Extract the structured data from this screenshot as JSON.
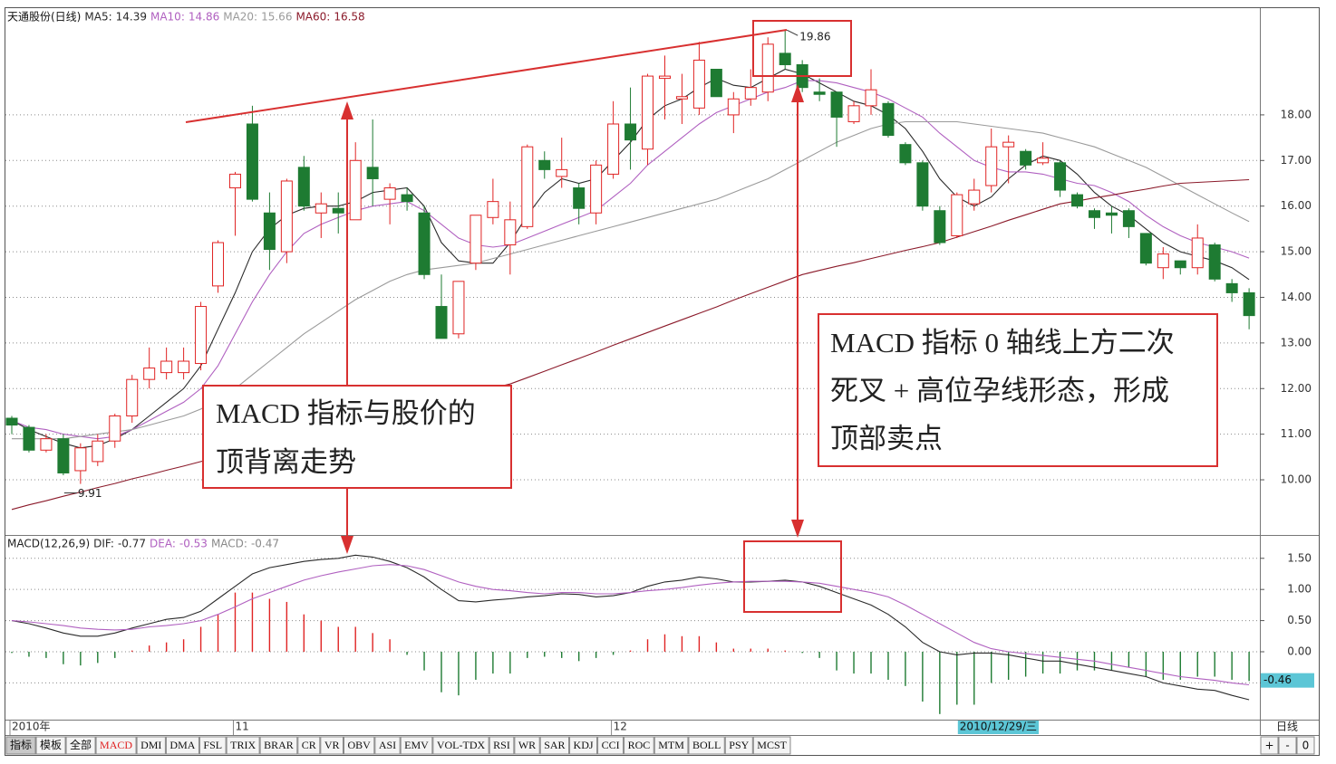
{
  "chart_data": [
    {
      "type": "candlestick",
      "title": "天通股份(日线)",
      "categories": [
        "2010年",
        null,
        null,
        null,
        null,
        null,
        null,
        null,
        null,
        null,
        null,
        null,
        null,
        "11",
        null,
        null,
        null,
        null,
        null,
        null,
        null,
        null,
        null,
        null,
        null,
        null,
        null,
        null,
        null,
        null,
        null,
        null,
        null,
        null,
        null,
        "12",
        null,
        null,
        null,
        null,
        null,
        null,
        null,
        null,
        null,
        null,
        null,
        null,
        null,
        null,
        null,
        null,
        null,
        null,
        null,
        "2010/12/29/三",
        null,
        null,
        null,
        null,
        null,
        null,
        null,
        null,
        null,
        null,
        null,
        null,
        null,
        null,
        null,
        null,
        null
      ],
      "cursor_index": 55,
      "period_label": "日线",
      "open": [
        11.35,
        11.15,
        10.65,
        10.9,
        10.2,
        10.4,
        10.85,
        11.4,
        12.2,
        12.35,
        12.35,
        12.55,
        14.25,
        16.4,
        17.8,
        15.85,
        15.0,
        16.85,
        15.85,
        15.95,
        15.7,
        16.85,
        16.15,
        16.25,
        15.85,
        13.8,
        13.2,
        14.75,
        15.75,
        15.15,
        15.55,
        17.0,
        16.65,
        16.4,
        15.85,
        16.7,
        17.8,
        17.25,
        18.8,
        18.35,
        18.15,
        19.0,
        18.0,
        18.35,
        18.5,
        19.35,
        19.1,
        18.5,
        18.5,
        17.85,
        18.2,
        18.25,
        17.35,
        16.95,
        15.9,
        15.35,
        16.05,
        16.45,
        17.3,
        17.2,
        16.95,
        16.95,
        16.25,
        15.9,
        15.85,
        15.9,
        15.4,
        14.65,
        14.8,
        14.65,
        15.15,
        14.3,
        14.1
      ],
      "high": [
        11.4,
        11.2,
        11.0,
        11.0,
        10.8,
        11.0,
        11.45,
        12.3,
        12.9,
        12.9,
        12.9,
        13.9,
        15.25,
        16.75,
        18.2,
        16.3,
        16.6,
        17.1,
        16.3,
        16.3,
        17.4,
        17.9,
        16.5,
        16.4,
        16.0,
        14.5,
        14.35,
        15.8,
        16.6,
        16.1,
        17.35,
        17.2,
        17.5,
        16.5,
        17.0,
        18.3,
        18.6,
        18.9,
        19.3,
        18.9,
        19.6,
        19.0,
        18.5,
        19.0,
        19.7,
        19.86,
        19.2,
        18.8,
        18.5,
        18.3,
        19.0,
        18.3,
        17.4,
        17.0,
        16.0,
        16.3,
        16.6,
        17.7,
        17.55,
        17.25,
        17.4,
        17.0,
        16.3,
        15.95,
        16.0,
        15.95,
        15.4,
        15.1,
        14.8,
        15.6,
        15.2,
        14.4,
        14.2
      ],
      "low": [
        11.0,
        10.6,
        10.6,
        10.1,
        9.91,
        10.3,
        10.7,
        11.25,
        12.0,
        12.2,
        12.2,
        12.4,
        14.1,
        15.35,
        16.1,
        14.6,
        14.75,
        15.9,
        15.3,
        15.4,
        15.7,
        16.0,
        15.6,
        15.9,
        14.4,
        13.1,
        13.1,
        14.6,
        15.6,
        14.5,
        15.5,
        16.6,
        16.4,
        15.6,
        15.6,
        16.6,
        16.8,
        16.9,
        17.9,
        17.8,
        18.0,
        18.4,
        17.6,
        18.2,
        18.3,
        19.0,
        18.5,
        18.3,
        17.3,
        17.8,
        18.0,
        17.5,
        16.9,
        15.9,
        15.15,
        15.3,
        15.9,
        16.3,
        16.5,
        16.8,
        16.9,
        16.2,
        15.95,
        15.5,
        15.4,
        15.3,
        14.7,
        14.4,
        14.5,
        14.5,
        14.35,
        13.9,
        13.3
      ],
      "close": [
        11.2,
        10.65,
        10.9,
        10.15,
        10.7,
        10.85,
        11.4,
        12.2,
        12.45,
        12.6,
        12.6,
        13.8,
        15.2,
        16.7,
        16.15,
        15.05,
        16.55,
        16.0,
        16.05,
        15.85,
        17.0,
        16.6,
        16.4,
        16.1,
        14.5,
        13.1,
        14.35,
        15.8,
        16.1,
        15.7,
        17.3,
        16.8,
        16.8,
        15.95,
        16.9,
        17.8,
        17.45,
        18.85,
        18.85,
        18.4,
        19.2,
        18.4,
        18.35,
        18.6,
        19.55,
        19.1,
        18.6,
        18.45,
        17.95,
        18.2,
        18.55,
        17.55,
        16.95,
        16.0,
        15.2,
        16.25,
        16.35,
        17.3,
        17.4,
        16.9,
        17.05,
        16.35,
        16.0,
        15.75,
        15.8,
        15.55,
        14.75,
        14.95,
        14.65,
        15.3,
        14.4,
        14.1,
        13.6
      ],
      "up_color": "#e02424",
      "down_color": "#1e7b32",
      "series": [
        {
          "name": "MA5:",
          "color": "#2a2a2a",
          "values": [
            11.3,
            11.1,
            10.95,
            10.8,
            10.7,
            10.75,
            10.9,
            11.1,
            11.4,
            11.7,
            12.0,
            12.5,
            13.3,
            14.1,
            15.0,
            15.5,
            15.8,
            15.95,
            16.0,
            16.0,
            16.1,
            16.3,
            16.35,
            16.4,
            16.0,
            15.2,
            14.8,
            14.75,
            14.75,
            15.2,
            15.8,
            16.3,
            16.6,
            16.5,
            16.6,
            17.0,
            17.4,
            17.9,
            18.2,
            18.35,
            18.6,
            18.8,
            18.65,
            18.6,
            18.8,
            19.0,
            18.9,
            18.7,
            18.5,
            18.3,
            18.2,
            18.0,
            17.7,
            17.2,
            16.6,
            16.2,
            16.0,
            16.2,
            16.6,
            16.9,
            17.1,
            17.0,
            16.7,
            16.3,
            16.0,
            15.8,
            15.5,
            15.2,
            15.0,
            14.9,
            14.8,
            14.65,
            14.39
          ]
        },
        {
          "name": "MA10:",
          "color": "#b060c0",
          "values": [
            11.3,
            11.15,
            11.1,
            11.0,
            10.95,
            10.9,
            10.95,
            11.1,
            11.3,
            11.5,
            11.7,
            12.0,
            12.5,
            13.2,
            13.9,
            14.5,
            15.0,
            15.4,
            15.6,
            15.75,
            15.9,
            16.0,
            16.05,
            16.1,
            15.9,
            15.6,
            15.3,
            15.15,
            15.1,
            15.15,
            15.3,
            15.45,
            15.6,
            15.75,
            15.9,
            16.2,
            16.5,
            16.9,
            17.2,
            17.5,
            17.8,
            18.05,
            18.2,
            18.35,
            18.5,
            18.6,
            18.75,
            18.75,
            18.7,
            18.6,
            18.5,
            18.35,
            18.15,
            17.95,
            17.6,
            17.3,
            17.0,
            16.85,
            16.75,
            16.75,
            16.7,
            16.6,
            16.5,
            16.45,
            16.3,
            16.1,
            15.8,
            15.55,
            15.35,
            15.2,
            15.1,
            15.0,
            14.86
          ]
        },
        {
          "name": "MA20:",
          "color": "#9a9a9a",
          "values": [
            10.9,
            10.9,
            10.9,
            10.9,
            10.95,
            11.0,
            11.05,
            11.1,
            11.2,
            11.3,
            11.4,
            11.55,
            11.75,
            12.0,
            12.3,
            12.6,
            12.9,
            13.2,
            13.45,
            13.7,
            13.95,
            14.15,
            14.35,
            14.5,
            14.6,
            14.65,
            14.7,
            14.75,
            14.85,
            14.95,
            15.05,
            15.15,
            15.25,
            15.35,
            15.45,
            15.55,
            15.65,
            15.75,
            15.85,
            15.95,
            16.05,
            16.15,
            16.3,
            16.45,
            16.6,
            16.8,
            17.0,
            17.2,
            17.4,
            17.55,
            17.7,
            17.8,
            17.85,
            17.85,
            17.85,
            17.85,
            17.8,
            17.75,
            17.7,
            17.65,
            17.6,
            17.5,
            17.4,
            17.3,
            17.15,
            17.0,
            16.85,
            16.65,
            16.45,
            16.25,
            16.05,
            15.85,
            15.66
          ]
        },
        {
          "name": "MA60:",
          "color": "#8b1a2a",
          "values": [
            9.35,
            9.45,
            9.54,
            9.64,
            9.73,
            9.83,
            9.92,
            10.02,
            10.11,
            10.21,
            10.3,
            10.4,
            10.49,
            10.59,
            10.68,
            10.78,
            10.87,
            10.97,
            11.06,
            11.16,
            11.25,
            11.35,
            11.44,
            11.54,
            11.63,
            11.73,
            11.82,
            11.92,
            12.01,
            12.1,
            12.24,
            12.38,
            12.52,
            12.66,
            12.8,
            12.95,
            13.09,
            13.23,
            13.37,
            13.51,
            13.65,
            13.79,
            13.94,
            14.08,
            14.22,
            14.36,
            14.5,
            14.59,
            14.68,
            14.76,
            14.85,
            14.94,
            15.03,
            15.11,
            15.2,
            15.32,
            15.44,
            15.56,
            15.69,
            15.81,
            15.93,
            16.05,
            16.11,
            16.18,
            16.24,
            16.31,
            16.37,
            16.44,
            16.5,
            16.52,
            16.54,
            16.56,
            16.58
          ]
        }
      ],
      "ylim": [
        8.81,
        20.32
      ],
      "yticks": [
        {
          "value": 10,
          "label": "10.00"
        },
        {
          "value": 11,
          "label": "11.00"
        },
        {
          "value": 12,
          "label": "12.00"
        },
        {
          "value": 13,
          "label": "13.00"
        },
        {
          "value": 14,
          "label": "14.00"
        },
        {
          "value": 15,
          "label": "15.00"
        },
        {
          "value": 16,
          "label": "16.00"
        },
        {
          "value": 17,
          "label": "17.00"
        },
        {
          "value": 18,
          "label": "18.00"
        }
      ],
      "grid": true,
      "extremes": {
        "high": 19.86,
        "low": 9.91
      },
      "annotations": [
        {
          "lines": [
            "MACD 指标与股价的",
            "顶背离走势"
          ]
        },
        {
          "lines": [
            "MACD 指标 0 轴线上方二次",
            "死叉 + 高位孕线形态，形成",
            "顶部卖点"
          ]
        }
      ]
    },
    {
      "type": "macd",
      "title": "MACD(12,26,9)",
      "series": [
        {
          "name": "DIF:",
          "color": "#2a2a2a",
          "values": [
            0.5,
            0.45,
            0.38,
            0.3,
            0.25,
            0.25,
            0.3,
            0.38,
            0.45,
            0.52,
            0.55,
            0.65,
            0.85,
            1.05,
            1.25,
            1.35,
            1.4,
            1.45,
            1.48,
            1.5,
            1.55,
            1.52,
            1.45,
            1.35,
            1.2,
            1.0,
            0.82,
            0.8,
            0.83,
            0.85,
            0.88,
            0.9,
            0.93,
            0.92,
            0.88,
            0.9,
            0.95,
            1.05,
            1.12,
            1.15,
            1.2,
            1.17,
            1.12,
            1.12,
            1.13,
            1.15,
            1.12,
            1.05,
            0.95,
            0.85,
            0.75,
            0.6,
            0.4,
            0.15,
            0.0,
            -0.05,
            -0.02,
            -0.02,
            -0.05,
            -0.1,
            -0.15,
            -0.15,
            -0.2,
            -0.25,
            -0.3,
            -0.35,
            -0.4,
            -0.5,
            -0.55,
            -0.6,
            -0.62,
            -0.7,
            -0.77
          ]
        },
        {
          "name": "DEA:",
          "color": "#b060c0",
          "values": [
            0.5,
            0.48,
            0.45,
            0.42,
            0.38,
            0.36,
            0.35,
            0.36,
            0.4,
            0.42,
            0.45,
            0.5,
            0.6,
            0.72,
            0.85,
            0.95,
            1.05,
            1.15,
            1.22,
            1.28,
            1.33,
            1.38,
            1.4,
            1.38,
            1.32,
            1.22,
            1.12,
            1.05,
            1.0,
            0.98,
            0.95,
            0.93,
            0.95,
            0.95,
            0.93,
            0.93,
            0.95,
            0.98,
            1.0,
            1.03,
            1.07,
            1.1,
            1.12,
            1.13,
            1.13,
            1.13,
            1.12,
            1.1,
            1.05,
            1.0,
            0.95,
            0.88,
            0.75,
            0.6,
            0.45,
            0.3,
            0.15,
            0.05,
            0.0,
            -0.03,
            -0.06,
            -0.09,
            -0.12,
            -0.15,
            -0.2,
            -0.25,
            -0.3,
            -0.35,
            -0.4,
            -0.43,
            -0.46,
            -0.5,
            -0.53
          ]
        }
      ],
      "histogram": {
        "name": "MACD:",
        "color": "#8a8a8a",
        "up_color": "#e02424",
        "down_color": "#1e7b32",
        "values": [
          -0.02,
          -0.08,
          -0.1,
          -0.2,
          -0.22,
          -0.18,
          -0.1,
          0.02,
          0.1,
          0.15,
          0.2,
          0.4,
          0.6,
          0.95,
          0.95,
          0.85,
          0.8,
          0.6,
          0.5,
          0.4,
          0.4,
          0.3,
          0.2,
          -0.05,
          -0.3,
          -0.65,
          -0.7,
          -0.45,
          -0.35,
          -0.35,
          -0.1,
          -0.08,
          -0.1,
          -0.15,
          -0.1,
          -0.05,
          0.02,
          0.2,
          0.28,
          0.25,
          0.25,
          0.15,
          0.05,
          0.05,
          0.05,
          0.02,
          -0.02,
          -0.1,
          -0.3,
          -0.35,
          -0.35,
          -0.45,
          -0.55,
          -0.8,
          -1.0,
          -0.85,
          -0.85,
          -0.5,
          -0.45,
          -0.4,
          -0.35,
          -0.35,
          -0.3,
          -0.3,
          -0.3,
          -0.25,
          -0.4,
          -0.45,
          -0.45,
          -0.4,
          -0.4,
          -0.45,
          -0.47
        ]
      },
      "ylim": [
        -1.09,
        1.86
      ],
      "yticks": [
        {
          "value": 1.5,
          "label": "1.50"
        },
        {
          "value": 1,
          "label": "1.00"
        },
        {
          "value": 0.5,
          "label": "0.50"
        },
        {
          "value": 0,
          "label": "0.00"
        },
        {
          "value": -0.5,
          "label": "-0.50"
        }
      ],
      "grid": true,
      "cursor_value": -0.46
    }
  ],
  "toolbar": {
    "tabs": [
      "指标",
      "模板",
      "全部",
      "MACD",
      "DMI",
      "DMA",
      "FSL",
      "TRIX",
      "BRAR",
      "CR",
      "VR",
      "OBV",
      "ASI",
      "EMV",
      "VOL-TDX",
      "RSI",
      "WR",
      "SAR",
      "KDJ",
      "CCI",
      "ROC",
      "MTM",
      "BOLL",
      "PSY",
      "MCST"
    ],
    "pressed_tab": 0,
    "active_tab": 3,
    "buttons": [
      "+",
      "-",
      "0"
    ]
  }
}
